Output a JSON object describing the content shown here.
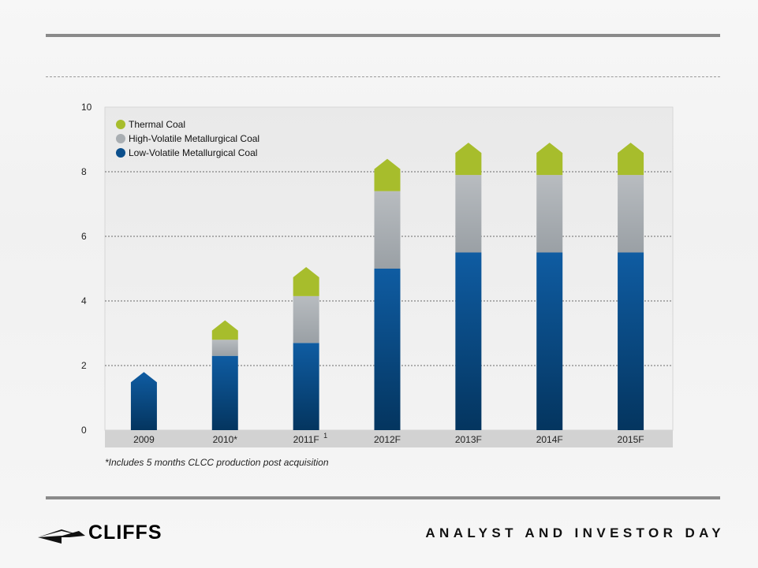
{
  "chart_data": {
    "type": "bar",
    "stacked": true,
    "categories": [
      "2009",
      "2010*",
      "2011F",
      "2012F",
      "2013F",
      "2014F",
      "2015F"
    ],
    "category_superscripts": [
      "",
      "",
      "1",
      "",
      "",
      "",
      ""
    ],
    "series": [
      {
        "name": "Low-Volatile Metallurgical Coal",
        "values": [
          1.8,
          2.3,
          2.7,
          5.0,
          5.5,
          5.5,
          5.5
        ],
        "color": "#0b4f8c"
      },
      {
        "name": "High-Volatile Metallurgical Coal",
        "values": [
          0.0,
          0.5,
          1.45,
          2.4,
          2.4,
          2.4,
          2.4
        ],
        "color": "#a9aeb2"
      },
      {
        "name": "Thermal Coal",
        "values": [
          0.0,
          0.6,
          0.9,
          1.0,
          1.0,
          1.0,
          1.0
        ],
        "color": "#a7bd2c"
      }
    ],
    "legend_order": [
      "Thermal Coal",
      "High-Volatile Metallurgical Coal",
      "Low-Volatile Metallurgical Coal"
    ],
    "ylim": [
      0,
      10
    ],
    "yticks": [
      "0",
      "2",
      "4",
      "6",
      "8",
      "10"
    ],
    "grid": true,
    "legend_position": "top-left"
  },
  "footnote": "*Includes 5 months CLCC production post acquisition",
  "logo": {
    "name": "CLIFFS"
  },
  "footer": {
    "event_title": "ANALYST AND INVESTOR DAY"
  }
}
